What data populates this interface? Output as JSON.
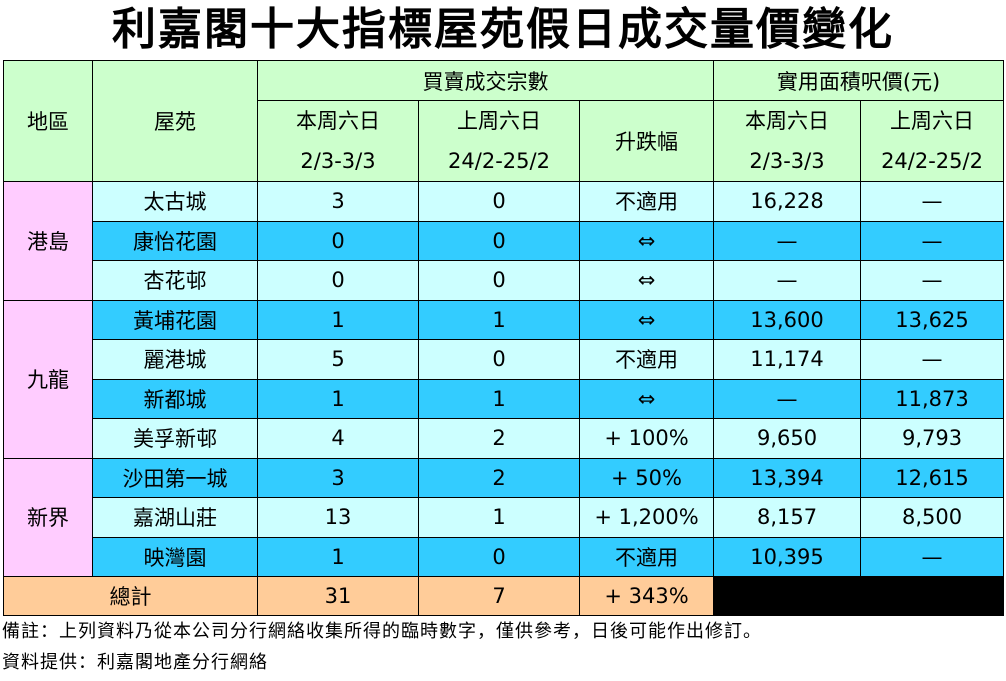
{
  "title": "利嘉閣十大指標屋苑假日成交量價變化",
  "table": {
    "header": {
      "region": "地區",
      "estate": "屋苑",
      "group1": "買賣成交宗數",
      "group2": "實用面積呎價(元)",
      "change": "升跌幅",
      "columns": [
        {
          "label": "本周六日",
          "dates": "2/3-3/3"
        },
        {
          "label": "上周六日",
          "dates": "24/2-25/2"
        },
        {
          "label": "本周六日",
          "dates": "2/3-3/3"
        },
        {
          "label": "上周六日",
          "dates": "24/2-25/2"
        }
      ]
    },
    "regions": [
      {
        "name": "港島",
        "rows": [
          [
            "太古城",
            "3",
            "0",
            "不適用",
            "16,228",
            "—"
          ],
          [
            "康怡花園",
            "0",
            "0",
            "⇔",
            "—",
            "—"
          ],
          [
            "杏花邨",
            "0",
            "0",
            "⇔",
            "—",
            "—"
          ]
        ]
      },
      {
        "name": "九龍",
        "rows": [
          [
            "黃埔花園",
            "1",
            "1",
            "⇔",
            "13,600",
            "13,625"
          ],
          [
            "麗港城",
            "5",
            "0",
            "不適用",
            "11,174",
            "—"
          ],
          [
            "新都城",
            "1",
            "1",
            "⇔",
            "—",
            "11,873"
          ],
          [
            "美孚新邨",
            "4",
            "2",
            "+ 100%",
            "9,650",
            "9,793"
          ]
        ]
      },
      {
        "name": "新界",
        "rows": [
          [
            "沙田第一城",
            "3",
            "2",
            "+ 50%",
            "13,394",
            "12,615"
          ],
          [
            "嘉湖山莊",
            "13",
            "1",
            "+ 1,200%",
            "8,157",
            "8,500"
          ],
          [
            "映灣園",
            "1",
            "0",
            "不適用",
            "10,395",
            "—"
          ]
        ]
      }
    ],
    "total": {
      "label": "總計",
      "values": [
        "31",
        "7",
        "+ 343%"
      ]
    }
  },
  "notes": [
    "備註：上列資料乃從本公司分行網絡收集所得的臨時數字，僅供參考，日後可能作出修訂。",
    "資料提供：利嘉閣地產分行網絡"
  ]
}
